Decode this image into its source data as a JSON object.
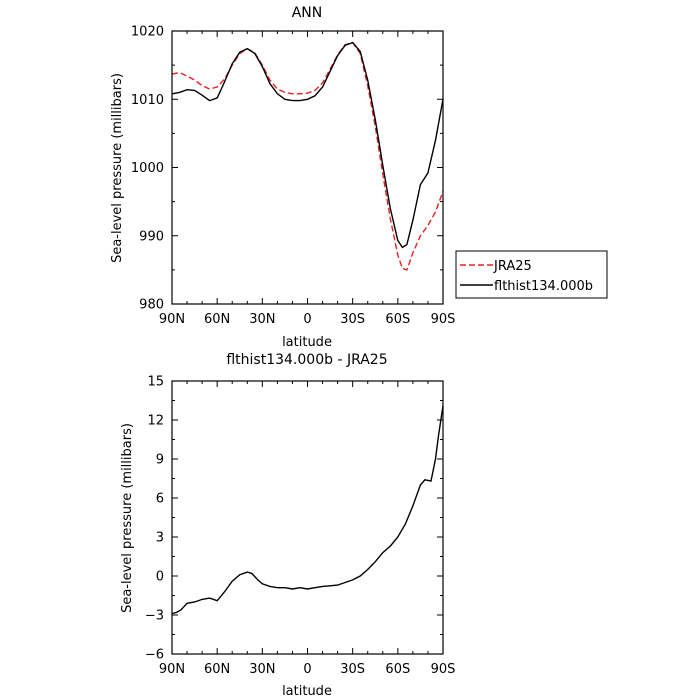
{
  "chart_data": [
    {
      "type": "line",
      "title": "ANN",
      "xlabel": "latitude",
      "ylabel": "Sea-level pressure (millibars)",
      "xlim": [
        90,
        -90
      ],
      "ylim": [
        980,
        1020
      ],
      "xticks": [
        90,
        60,
        30,
        0,
        -30,
        -60,
        -90
      ],
      "xtick_labels": [
        "90N",
        "60N",
        "30N",
        "0",
        "30S",
        "60S",
        "90S"
      ],
      "yticks": [
        980,
        990,
        1000,
        1010,
        1020
      ],
      "ytick_labels": [
        "980",
        "990",
        "1000",
        "1010",
        "1020"
      ],
      "grid": false,
      "legend": "right-outside",
      "series": [
        {
          "name": "JRA25",
          "color": "#e8201f",
          "dash": "dashed",
          "x": [
            90,
            85,
            80,
            75,
            70,
            65,
            60,
            55,
            50,
            45,
            40,
            35,
            30,
            25,
            20,
            15,
            10,
            5,
            0,
            -5,
            -10,
            -15,
            -20,
            -25,
            -30,
            -35,
            -40,
            -45,
            -50,
            -55,
            -60,
            -63,
            -66,
            -70,
            -75,
            -80,
            -85,
            -90
          ],
          "values": [
            1013.7,
            1013.9,
            1013.4,
            1012.8,
            1012.0,
            1011.5,
            1011.8,
            1013.0,
            1015.0,
            1016.7,
            1017.4,
            1016.8,
            1015.0,
            1012.8,
            1011.5,
            1011.0,
            1010.8,
            1010.8,
            1010.9,
            1011.3,
            1012.4,
            1014.4,
            1016.5,
            1018.0,
            1018.3,
            1016.7,
            1012.0,
            1006.0,
            999.0,
            992.5,
            987.2,
            985.2,
            985.0,
            987.5,
            990.0,
            991.5,
            993.5,
            996.5
          ]
        },
        {
          "name": "flthist134.000b",
          "color": "#000000",
          "dash": "solid",
          "x": [
            90,
            85,
            80,
            75,
            70,
            65,
            60,
            55,
            50,
            45,
            40,
            35,
            30,
            25,
            20,
            15,
            10,
            5,
            0,
            -5,
            -10,
            -15,
            -20,
            -25,
            -30,
            -35,
            -40,
            -45,
            -50,
            -55,
            -60,
            -63,
            -66,
            -70,
            -75,
            -80,
            -85,
            -90
          ],
          "values": [
            1010.8,
            1011.0,
            1011.4,
            1011.3,
            1010.6,
            1009.8,
            1010.2,
            1012.6,
            1015.2,
            1016.9,
            1017.4,
            1016.7,
            1014.8,
            1012.3,
            1010.8,
            1010.0,
            1009.8,
            1009.8,
            1010.0,
            1010.5,
            1011.8,
            1014.1,
            1016.4,
            1017.9,
            1018.3,
            1017.0,
            1012.8,
            1007.0,
            1000.3,
            994.0,
            989.3,
            988.3,
            988.7,
            992.3,
            997.5,
            999.2,
            1004.0,
            1010.0
          ]
        }
      ]
    },
    {
      "type": "line",
      "title": "flthist134.000b - JRA25",
      "xlabel": "latitude",
      "ylabel": "Sea-level pressure (millibars)",
      "xlim": [
        90,
        -90
      ],
      "ylim": [
        -6,
        15
      ],
      "xticks": [
        90,
        60,
        30,
        0,
        -30,
        -60,
        -90
      ],
      "xtick_labels": [
        "90N",
        "60N",
        "30N",
        "0",
        "30S",
        "60S",
        "90S"
      ],
      "yticks": [
        -6,
        -3,
        0,
        3,
        6,
        9,
        12,
        15
      ],
      "ytick_labels": [
        "−6",
        "−3",
        "0",
        "3",
        "6",
        "9",
        "12",
        "15"
      ],
      "grid": false,
      "series": [
        {
          "color": "#000000",
          "dash": "solid",
          "x": [
            90,
            87,
            84,
            80,
            75,
            70,
            65,
            60,
            55,
            50,
            45,
            40,
            37,
            33,
            30,
            25,
            20,
            15,
            10,
            5,
            0,
            -5,
            -10,
            -15,
            -20,
            -25,
            -30,
            -35,
            -40,
            -45,
            -50,
            -55,
            -60,
            -65,
            -70,
            -75,
            -78,
            -82,
            -85,
            -87,
            -90
          ],
          "values": [
            -2.9,
            -2.8,
            -2.6,
            -2.1,
            -2.0,
            -1.8,
            -1.7,
            -1.9,
            -1.2,
            -0.4,
            0.1,
            0.3,
            0.2,
            -0.3,
            -0.6,
            -0.8,
            -0.9,
            -0.9,
            -1.0,
            -0.9,
            -1.0,
            -0.9,
            -0.8,
            -0.75,
            -0.7,
            -0.5,
            -0.3,
            0.0,
            0.5,
            1.1,
            1.8,
            2.3,
            3.0,
            4.0,
            5.4,
            7.0,
            7.4,
            7.3,
            9.0,
            10.8,
            13.1
          ]
        }
      ]
    }
  ]
}
